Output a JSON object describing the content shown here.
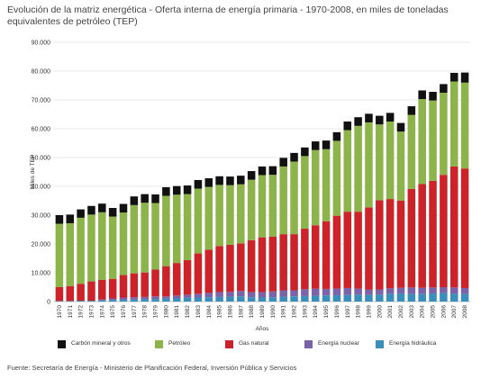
{
  "title": "Evolución de la matriz energética - Oferta interna de energía primaria - 1970-2008, en miles de toneladas equivalentes de petróleo (TEP)",
  "source": "Fuente: Secretaría de Energía - Ministerio de Planificación Federal, Inversión Pública y Servicios",
  "chart_data": {
    "type": "bar",
    "stacked": true,
    "ylabel": "Miles de TEP",
    "xlabel": "Años",
    "ylim": [
      0,
      90000
    ],
    "yticks": [
      "0",
      "10.000",
      "20.000",
      "30.000",
      "40.000",
      "50.000",
      "60.000",
      "70.000",
      "80.000",
      "90.000"
    ],
    "grid": true,
    "legend_position": "bottom",
    "categories": [
      "1970",
      "1971",
      "1972",
      "1973",
      "1974",
      "1975",
      "1976",
      "1977",
      "1978",
      "1979",
      "1980",
      "1981",
      "1982",
      "1983",
      "1984",
      "1985",
      "1986",
      "1987",
      "1988",
      "1989",
      "1990",
      "1991",
      "1992",
      "1993",
      "1994",
      "1995",
      "1996",
      "1997",
      "1998",
      "1999",
      "2000",
      "2001",
      "2002",
      "2003",
      "2004",
      "2005",
      "2006",
      "2007",
      "2008"
    ],
    "series": [
      {
        "name": "Energía hidráulica",
        "color": "#3a8fba",
        "values": [
          200,
          200,
          300,
          300,
          400,
          500,
          600,
          700,
          800,
          900,
          1000,
          1100,
          1300,
          1400,
          1500,
          1600,
          1700,
          1800,
          1500,
          1400,
          1500,
          1700,
          1800,
          1900,
          2000,
          2100,
          2200,
          2300,
          2400,
          2300,
          2400,
          2700,
          2800,
          2600,
          2600,
          2800,
          3000,
          2700,
          2600
        ]
      },
      {
        "name": "Energía nuclear",
        "color": "#7a63a8",
        "values": [
          0,
          0,
          0,
          0,
          300,
          600,
          800,
          800,
          800,
          900,
          800,
          1000,
          1100,
          1300,
          1500,
          1700,
          1700,
          1900,
          1800,
          1900,
          2000,
          2200,
          2100,
          2400,
          2500,
          2300,
          2300,
          2400,
          2100,
          1900,
          1800,
          1900,
          2000,
          2300,
          2200,
          2100,
          2000,
          2200,
          2100
        ]
      },
      {
        "name": "Gas natural",
        "color": "#cc2229",
        "values": [
          4800,
          5200,
          5800,
          6700,
          6800,
          6800,
          7800,
          8300,
          8500,
          9300,
          10500,
          11300,
          12000,
          14000,
          15000,
          16000,
          16300,
          16500,
          18000,
          19000,
          19000,
          19500,
          19500,
          21000,
          22000,
          23500,
          25300,
          26500,
          26700,
          28500,
          31000,
          31000,
          30200,
          34200,
          36000,
          37000,
          39000,
          42000,
          41500
        ]
      },
      {
        "name": "Petróleo",
        "color": "#8cb44a",
        "values": [
          22000,
          21800,
          23000,
          23200,
          23500,
          21600,
          21700,
          23700,
          24200,
          23100,
          24400,
          23700,
          22900,
          22500,
          21800,
          21200,
          20700,
          20500,
          21000,
          21600,
          21500,
          23500,
          25200,
          25200,
          26100,
          25000,
          26000,
          28300,
          29800,
          29500,
          26300,
          26900,
          24000,
          25700,
          29500,
          27900,
          28500,
          29500,
          29800
        ]
      },
      {
        "name": "Carbón mineral y otros",
        "color": "#111111",
        "values": [
          3000,
          3000,
          2900,
          3000,
          3000,
          3000,
          3000,
          3000,
          3000,
          3000,
          3000,
          3000,
          3000,
          3000,
          3000,
          3000,
          3000,
          3000,
          3000,
          3000,
          3000,
          3000,
          3000,
          3000,
          3000,
          3000,
          3000,
          3000,
          3000,
          3000,
          3000,
          3000,
          3000,
          3000,
          3000,
          3000,
          3000,
          3000,
          3500
        ]
      }
    ]
  }
}
